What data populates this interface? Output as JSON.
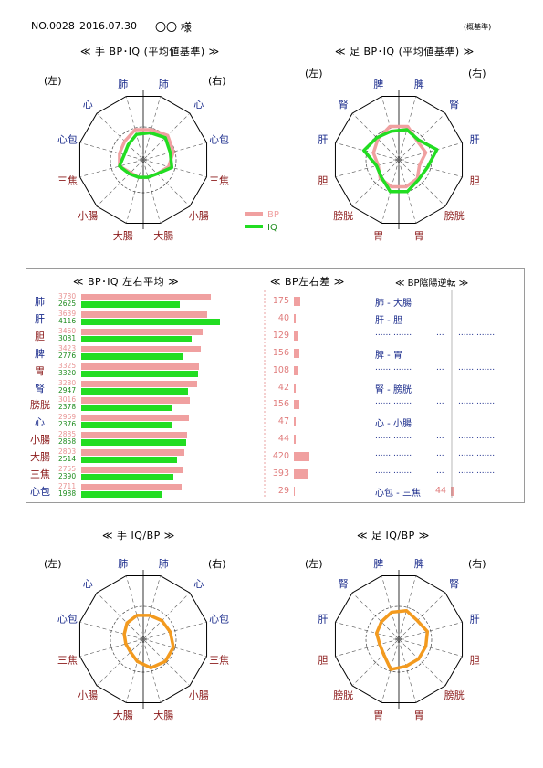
{
  "header": {
    "number": "NO.0028",
    "date": "2016.07.30",
    "name": "〇〇 様",
    "note": "(概基準)"
  },
  "colors": {
    "bp": "#f0a0a0",
    "iq": "#22dd22",
    "ratio": "#f39a1e",
    "yin": "#1b2c8c",
    "yang": "#8b1a1a",
    "grid": "#555555"
  },
  "charts": {
    "hand_bpiq": {
      "title": "≪ 手 BP･IQ (平均値基準) ≫",
      "left": "(左)",
      "right": "(右)",
      "legend": {
        "bp": "BP",
        "iq": "IQ"
      },
      "labels": [
        "肺",
        "心",
        "心包",
        "三焦",
        "小腸",
        "大腸",
        "大腸",
        "小腸",
        "三焦",
        "心包",
        "心",
        "肺"
      ]
    },
    "foot_bpiq": {
      "title": "≪ 足 BP･IQ (平均値基準) ≫",
      "left": "(左)",
      "right": "(右)",
      "labels": [
        "脾",
        "腎",
        "肝",
        "胆",
        "膀胱",
        "胃",
        "胃",
        "膀胱",
        "胆",
        "肝",
        "腎",
        "脾"
      ]
    },
    "hand_ratio": {
      "title": "≪ 手 IQ/BP ≫",
      "left": "(左)",
      "right": "(右)",
      "labels": [
        "肺",
        "心",
        "心包",
        "三焦",
        "小腸",
        "大腸",
        "大腸",
        "小腸",
        "三焦",
        "心包",
        "心",
        "肺"
      ]
    },
    "foot_ratio": {
      "title": "≪ 足 IQ/BP ≫",
      "left": "(左)",
      "right": "(右)",
      "labels": [
        "脾",
        "腎",
        "肝",
        "胆",
        "膀胱",
        "胃",
        "胃",
        "膀胱",
        "胆",
        "肝",
        "腎",
        "脾"
      ]
    }
  },
  "table": {
    "avg_title": "≪ BP･IQ 左右平均 ≫",
    "diff_title": "≪ BP左右差 ≫",
    "rev_title": "≪ BP陰陽逆転 ≫",
    "rows": [
      {
        "label": "肺",
        "bp": "3780",
        "iq": "2625",
        "diff": "175"
      },
      {
        "label": "肝",
        "bp": "3639",
        "iq": "4116",
        "diff": "40"
      },
      {
        "label": "胆",
        "bp": "3460",
        "iq": "3081",
        "diff": "129"
      },
      {
        "label": "脾",
        "bp": "3423",
        "iq": "2776",
        "diff": "156"
      },
      {
        "label": "胃",
        "bp": "3325",
        "iq": "3320",
        "diff": "108"
      },
      {
        "label": "腎",
        "bp": "3280",
        "iq": "2947",
        "diff": "42"
      },
      {
        "label": "膀胱",
        "bp": "3016",
        "iq": "2378",
        "diff": "156"
      },
      {
        "label": "心",
        "bp": "2969",
        "iq": "2376",
        "diff": "47"
      },
      {
        "label": "小腸",
        "bp": "2885",
        "iq": "2858",
        "diff": "44"
      },
      {
        "label": "大腸",
        "bp": "2803",
        "iq": "2514",
        "diff": "420"
      },
      {
        "label": "三焦",
        "bp": "2755",
        "iq": "2390",
        "diff": "393"
      },
      {
        "label": "心包",
        "bp": "2711",
        "iq": "1988",
        "diff": "29"
      }
    ],
    "pairs": [
      {
        "text": "肺 - 大腸",
        "value": ""
      },
      {
        "text": "肝 - 胆",
        "value": ""
      },
      {
        "text": "",
        "value": ""
      },
      {
        "text": "脾 - 胃",
        "value": ""
      },
      {
        "text": "",
        "value": ""
      },
      {
        "text": "腎 - 膀胱",
        "value": ""
      },
      {
        "text": "",
        "value": ""
      },
      {
        "text": "心 - 小腸",
        "value": ""
      },
      {
        "text": "",
        "value": ""
      },
      {
        "text": "",
        "value": ""
      },
      {
        "text": "",
        "value": ""
      },
      {
        "text": "心包 - 三焦",
        "value": "44"
      }
    ],
    "dotted": "..............",
    "dotted_short": "..."
  },
  "chart_data": [
    {
      "type": "radar",
      "title": "≪ 手 BP･IQ (平均値基準) ≫",
      "axes": [
        "肺",
        "心",
        "心包",
        "三焦",
        "小腸",
        "大腸",
        "大腸",
        "小腸",
        "三焦",
        "心包",
        "心",
        "肺"
      ],
      "rmax": 2.0,
      "series": [
        {
          "name": "BP",
          "values": [
            0.95,
            1.05,
            0.95,
            0.8,
            0.6,
            0.55,
            0.55,
            0.55,
            0.75,
            0.75,
            0.8,
            0.95
          ]
        },
        {
          "name": "IQ",
          "values": [
            0.85,
            0.95,
            0.85,
            0.9,
            0.6,
            0.55,
            0.55,
            0.6,
            0.75,
            0.6,
            0.65,
            0.8
          ]
        }
      ]
    },
    {
      "type": "radar",
      "title": "≪ 足 BP･IQ (平均値基準) ≫",
      "axes": [
        "脾",
        "腎",
        "肝",
        "胆",
        "膀胱",
        "胃",
        "胃",
        "膀胱",
        "胆",
        "肝",
        "腎",
        "脾"
      ],
      "rmax": 2.0,
      "series": [
        {
          "name": "BP",
          "values": [
            1.05,
            0.8,
            0.85,
            0.65,
            0.8,
            0.85,
            0.85,
            0.8,
            0.65,
            0.8,
            0.9,
            1.05
          ]
        },
        {
          "name": "IQ",
          "values": [
            0.95,
            0.85,
            1.2,
            0.9,
            0.85,
            1.0,
            1.0,
            0.75,
            0.7,
            1.1,
            0.95,
            0.9
          ]
        }
      ]
    },
    {
      "type": "radar",
      "title": "≪ 手 IQ/BP ≫",
      "axes": [
        "肺",
        "心",
        "心包",
        "三焦",
        "小腸",
        "大腸",
        "大腸",
        "小腸",
        "三焦",
        "心包",
        "心",
        "肺"
      ],
      "rmax": 2.0,
      "series": [
        {
          "name": "",
          "values": [
            0.75,
            0.8,
            0.85,
            0.95,
            0.95,
            0.9,
            0.7,
            0.55,
            0.55,
            0.6,
            0.7,
            0.75
          ]
        }
      ]
    },
    {
      "type": "radar",
      "title": "≪ 足 IQ/BP ≫",
      "axes": [
        "脾",
        "腎",
        "肝",
        "胆",
        "膀胱",
        "胃",
        "胃",
        "膀胱",
        "胆",
        "肝",
        "腎",
        "脾"
      ],
      "rmax": 2.0,
      "series": [
        {
          "name": "",
          "values": [
            0.9,
            0.8,
            0.9,
            0.85,
            0.85,
            0.85,
            0.95,
            0.65,
            0.6,
            0.7,
            0.75,
            0.85
          ]
        }
      ]
    }
  ]
}
